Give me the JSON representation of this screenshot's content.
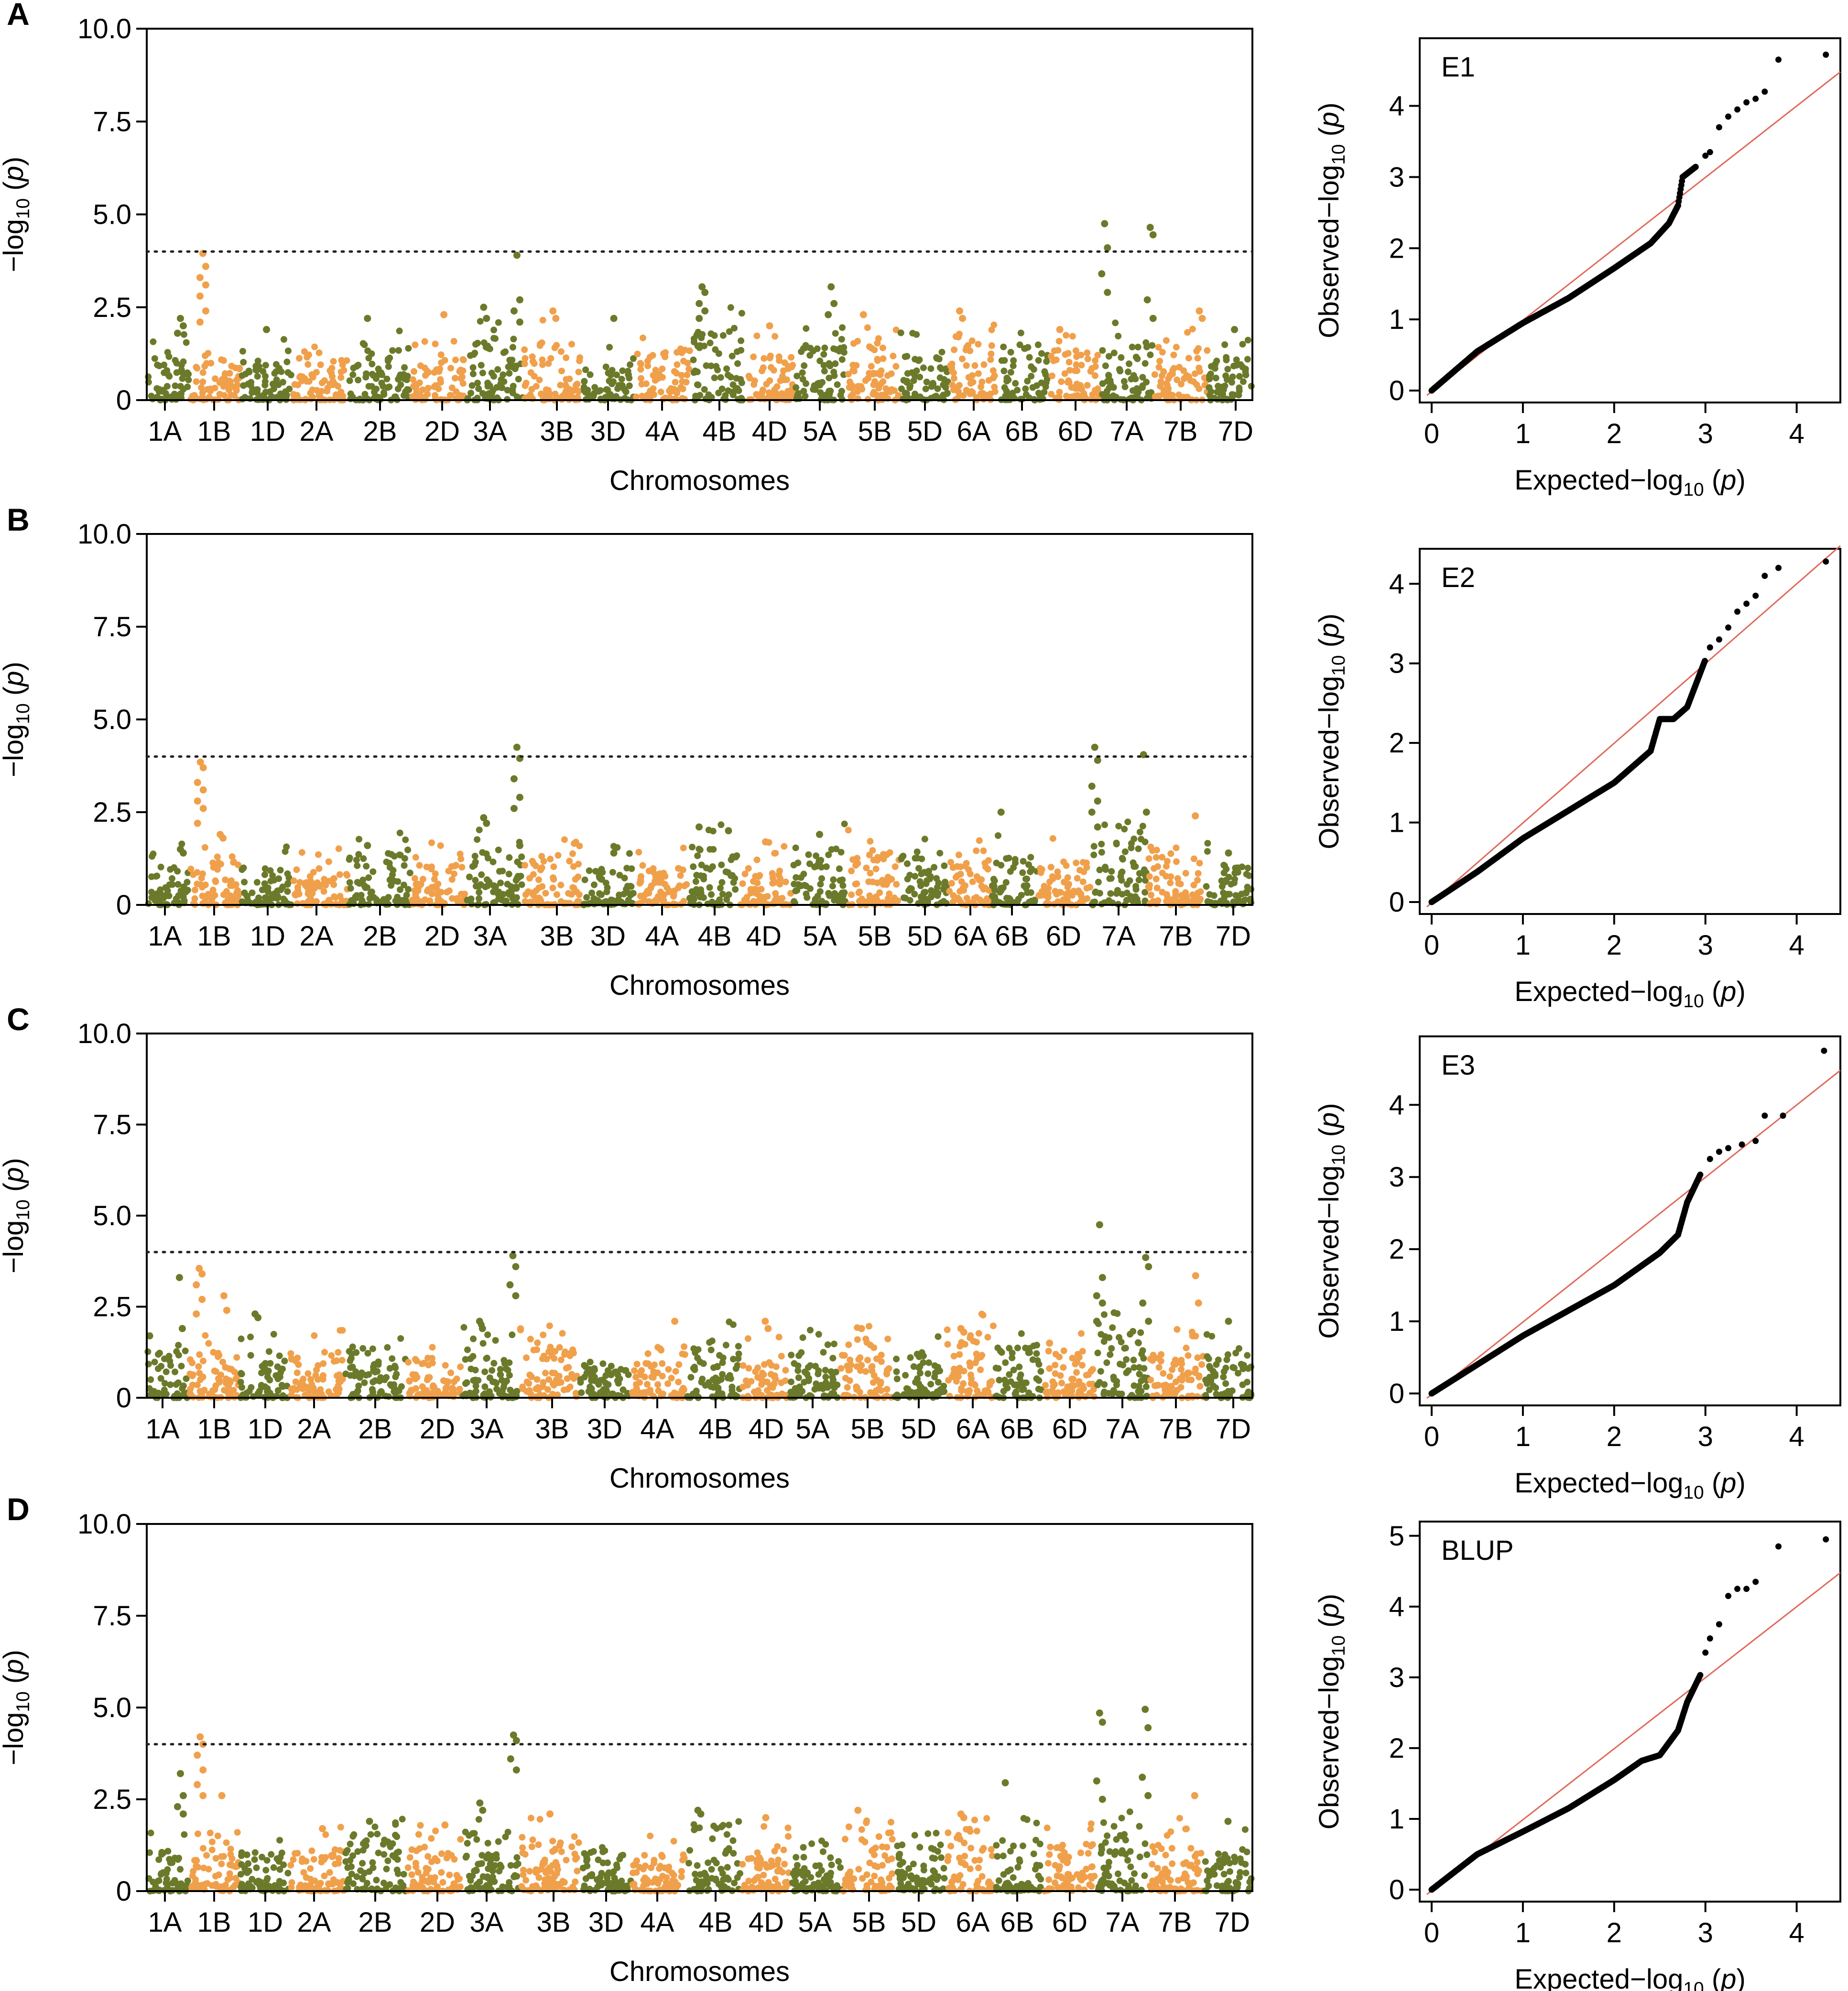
{
  "colors": {
    "olive": "#6b7a2a",
    "orange": "#f0a04b",
    "reference_line": "#e0685a",
    "points": "#000000",
    "threshold": "#222222"
  },
  "chart_data": [
    {
      "panel": "A",
      "type": "scatter",
      "subtype": "manhattan",
      "xlabel": "Chromosomes",
      "ylabel": "−log10 (p)",
      "ylim": [
        0,
        10
      ],
      "yticks": [
        "0",
        "2.5",
        "5.0",
        "7.5",
        "10.0"
      ],
      "threshold": 4,
      "categories": [
        "1A",
        "1B",
        "1D",
        "2A",
        "2B",
        "2D",
        "3A",
        "3B",
        "3D",
        "4A",
        "4B",
        "4D",
        "5A",
        "5B",
        "5D",
        "6A",
        "6B",
        "6D",
        "7A",
        "7B",
        "7D"
      ],
      "baseline_max": [
        1.4,
        1.3,
        1.1,
        1.3,
        1.5,
        1.2,
        1.7,
        1.6,
        0.9,
        1.3,
        1.9,
        1.2,
        1.5,
        1.6,
        1.3,
        1.9,
        1.5,
        1.4,
        1.7,
        1.5,
        1.2
      ],
      "peaks": [
        {
          "chrom": "1A",
          "pos": 0.8,
          "p": [
            2.2,
            2.0,
            1.8
          ]
        },
        {
          "chrom": "1B",
          "pos": 0.25,
          "p": [
            3.95,
            3.6,
            3.3,
            3.1,
            2.8,
            2.4,
            2.1
          ]
        },
        {
          "chrom": "1D",
          "pos": 0.5,
          "p": [
            1.9
          ]
        },
        {
          "chrom": "2B",
          "pos": 0.3,
          "p": [
            2.2
          ]
        },
        {
          "chrom": "2D",
          "pos": 0.6,
          "p": [
            2.3
          ]
        },
        {
          "chrom": "3A",
          "pos": 0.3,
          "p": [
            2.5,
            2.2
          ]
        },
        {
          "chrom": "3A",
          "pos": 0.9,
          "p": [
            3.9,
            2.7,
            2.4,
            2.1
          ]
        },
        {
          "chrom": "3B",
          "pos": 0.5,
          "p": [
            2.4,
            2.2
          ]
        },
        {
          "chrom": "3D",
          "pos": 0.6,
          "p": [
            2.2
          ]
        },
        {
          "chrom": "4B",
          "pos": 0.2,
          "p": [
            3.05,
            2.9,
            2.6,
            2.4,
            2.2
          ]
        },
        {
          "chrom": "4D",
          "pos": 0.5,
          "p": [
            2.0
          ]
        },
        {
          "chrom": "5A",
          "pos": 0.7,
          "p": [
            3.05,
            2.6,
            2.3
          ]
        },
        {
          "chrom": "5B",
          "pos": 0.3,
          "p": [
            2.3
          ]
        },
        {
          "chrom": "6A",
          "pos": 0.2,
          "p": [
            2.4,
            2.2
          ]
        },
        {
          "chrom": "6D",
          "pos": 0.2,
          "p": [
            1.9
          ]
        },
        {
          "chrom": "7A",
          "pos": 0.05,
          "p": [
            4.75,
            4.1,
            3.4,
            2.9
          ]
        },
        {
          "chrom": "7A",
          "pos": 0.95,
          "p": [
            4.65,
            4.45,
            2.7,
            2.2
          ]
        },
        {
          "chrom": "7B",
          "pos": 0.85,
          "p": [
            2.4,
            2.2
          ]
        },
        {
          "chrom": "7D",
          "pos": 0.6,
          "p": [
            1.9
          ]
        }
      ]
    },
    {
      "panel": "B",
      "type": "scatter",
      "subtype": "manhattan",
      "xlabel": "Chromosomes",
      "ylabel": "−log10 (p)",
      "ylim": [
        0,
        10
      ],
      "yticks": [
        "0",
        "2.5",
        "5.0",
        "7.5",
        "10.0"
      ],
      "threshold": 4,
      "categories": [
        "1A",
        "1B",
        "1D",
        "2A",
        "2B",
        "2D",
        "3A",
        "3B",
        "3D",
        "4A",
        "4B",
        "4D",
        "5A",
        "5B",
        "5D",
        "6A",
        "6B",
        "6D",
        "7A",
        "7B",
        "7D"
      ],
      "baseline_max": [
        1.1,
        1.3,
        1.0,
        1.0,
        1.4,
        1.1,
        1.5,
        1.2,
        1.0,
        1.0,
        1.8,
        1.1,
        1.6,
        1.5,
        1.4,
        1.5,
        1.3,
        1.2,
        1.7,
        1.3,
        1.1
      ],
      "peaks": [
        {
          "chrom": "1A",
          "pos": 0.8,
          "p": [
            1.5,
            1.4
          ]
        },
        {
          "chrom": "1B",
          "pos": 0.2,
          "p": [
            3.85,
            3.7,
            3.3,
            3.1,
            2.8,
            2.6,
            2.2
          ]
        },
        {
          "chrom": "1B",
          "pos": 0.6,
          "p": [
            1.9,
            1.8
          ]
        },
        {
          "chrom": "2B",
          "pos": 0.3,
          "p": [
            1.6
          ]
        },
        {
          "chrom": "3A",
          "pos": 0.3,
          "p": [
            2.35,
            2.2
          ]
        },
        {
          "chrom": "3A",
          "pos": 0.9,
          "p": [
            4.25,
            3.95,
            3.4,
            2.9,
            2.6,
            1.6
          ]
        },
        {
          "chrom": "3D",
          "pos": 0.6,
          "p": [
            1.4
          ]
        },
        {
          "chrom": "4B",
          "pos": 0.2,
          "p": [
            2.1
          ]
        },
        {
          "chrom": "4B",
          "pos": 0.8,
          "p": [
            2.0
          ]
        },
        {
          "chrom": "4D",
          "pos": 0.5,
          "p": [
            1.7
          ]
        },
        {
          "chrom": "5A",
          "pos": 0.5,
          "p": [
            1.9
          ]
        },
        {
          "chrom": "6B",
          "pos": 0.2,
          "p": [
            2.5
          ]
        },
        {
          "chrom": "7A",
          "pos": 0.05,
          "p": [
            4.25,
            3.9,
            3.2,
            2.8,
            2.5,
            2.1
          ]
        },
        {
          "chrom": "7A",
          "pos": 0.95,
          "p": [
            4.05,
            2.5
          ]
        },
        {
          "chrom": "7B",
          "pos": 0.85,
          "p": [
            2.4
          ]
        },
        {
          "chrom": "7D",
          "pos": 0.5,
          "p": [
            1.4
          ]
        }
      ]
    },
    {
      "panel": "C",
      "type": "scatter",
      "subtype": "manhattan",
      "xlabel": "Chromosomes",
      "ylabel": "−log10 (p)",
      "ylim": [
        0,
        10
      ],
      "yticks": [
        "0",
        "2.5",
        "5.0",
        "7.5",
        "10.0"
      ],
      "threshold": 4,
      "categories": [
        "1A",
        "1B",
        "1D",
        "2A",
        "2B",
        "2D",
        "3A",
        "3B",
        "3D",
        "4A",
        "4B",
        "4D",
        "5A",
        "5B",
        "5D",
        "6A",
        "6B",
        "6D",
        "7A",
        "7B",
        "7D"
      ],
      "baseline_max": [
        1.3,
        1.3,
        1.2,
        1.3,
        1.4,
        1.1,
        1.6,
        1.4,
        1.0,
        1.0,
        1.6,
        1.3,
        1.3,
        1.5,
        1.3,
        1.9,
        1.4,
        1.3,
        1.8,
        1.4,
        1.2
      ],
      "peaks": [
        {
          "chrom": "1A",
          "pos": 0.05,
          "p": [
            1.7
          ]
        },
        {
          "chrom": "1A",
          "pos": 0.8,
          "p": [
            3.3,
            1.9
          ]
        },
        {
          "chrom": "1B",
          "pos": 0.2,
          "p": [
            3.55,
            3.4,
            3.1,
            2.7,
            2.3
          ]
        },
        {
          "chrom": "1B",
          "pos": 0.7,
          "p": [
            2.8,
            2.4
          ]
        },
        {
          "chrom": "1D",
          "pos": 0.3,
          "p": [
            2.3,
            2.2
          ]
        },
        {
          "chrom": "3A",
          "pos": 0.3,
          "p": [
            2.1,
            1.9
          ]
        },
        {
          "chrom": "3A",
          "pos": 0.9,
          "p": [
            3.9,
            3.6,
            3.1,
            2.8
          ]
        },
        {
          "chrom": "4A",
          "pos": 0.8,
          "p": [
            2.1
          ]
        },
        {
          "chrom": "4D",
          "pos": 0.5,
          "p": [
            2.1,
            1.9
          ]
        },
        {
          "chrom": "5B",
          "pos": 0.4,
          "p": [
            1.9
          ]
        },
        {
          "chrom": "6A",
          "pos": 0.3,
          "p": [
            1.9,
            1.8
          ]
        },
        {
          "chrom": "6D",
          "pos": 0.1,
          "p": [
            1.5
          ]
        },
        {
          "chrom": "7A",
          "pos": 0.05,
          "p": [
            4.75,
            3.3,
            2.8,
            2.6,
            2.1
          ]
        },
        {
          "chrom": "7A",
          "pos": 0.95,
          "p": [
            3.85,
            3.6,
            2.6,
            2.1
          ]
        },
        {
          "chrom": "7B",
          "pos": 0.85,
          "p": [
            3.35,
            2.6,
            1.7
          ]
        },
        {
          "chrom": "7D",
          "pos": 0.5,
          "p": [
            2.1
          ]
        }
      ]
    },
    {
      "panel": "D",
      "type": "scatter",
      "subtype": "manhattan",
      "xlabel": "Chromosomes",
      "ylabel": "−log10 (p)",
      "ylim": [
        0,
        10
      ],
      "yticks": [
        "0",
        "2.5",
        "5.0",
        "7.5",
        "10.0"
      ],
      "threshold": 4,
      "categories": [
        "1A",
        "1B",
        "1D",
        "2A",
        "2B",
        "2D",
        "3A",
        "3B",
        "3D",
        "4A",
        "4B",
        "4D",
        "5A",
        "5B",
        "5D",
        "6A",
        "6B",
        "6D",
        "7A",
        "7B",
        "7D"
      ],
      "baseline_max": [
        1.2,
        1.3,
        1.1,
        1.2,
        1.6,
        1.2,
        1.7,
        1.5,
        1.1,
        1.0,
        1.9,
        1.2,
        1.3,
        1.5,
        1.4,
        1.8,
        1.4,
        1.3,
        1.8,
        1.4,
        1.2
      ],
      "peaks": [
        {
          "chrom": "1A",
          "pos": 0.8,
          "p": [
            3.2,
            2.6,
            2.3,
            2.1
          ]
        },
        {
          "chrom": "1B",
          "pos": 0.2,
          "p": [
            4.2,
            4.0,
            3.7,
            3.3,
            2.9,
            2.6
          ]
        },
        {
          "chrom": "1B",
          "pos": 0.65,
          "p": [
            2.6
          ]
        },
        {
          "chrom": "2A",
          "pos": 0.6,
          "p": [
            1.7
          ]
        },
        {
          "chrom": "2B",
          "pos": 0.4,
          "p": [
            1.9
          ]
        },
        {
          "chrom": "2D",
          "pos": 0.7,
          "p": [
            1.8
          ]
        },
        {
          "chrom": "3A",
          "pos": 0.3,
          "p": [
            2.4,
            2.2
          ]
        },
        {
          "chrom": "3A",
          "pos": 0.9,
          "p": [
            4.25,
            4.1,
            3.6,
            3.3
          ]
        },
        {
          "chrom": "3B",
          "pos": 0.5,
          "p": [
            2.1
          ]
        },
        {
          "chrom": "4B",
          "pos": 0.2,
          "p": [
            2.2,
            2.1
          ]
        },
        {
          "chrom": "4D",
          "pos": 0.5,
          "p": [
            2.0
          ]
        },
        {
          "chrom": "5B",
          "pos": 0.3,
          "p": [
            2.2
          ]
        },
        {
          "chrom": "6A",
          "pos": 0.3,
          "p": [
            2.1,
            2.0
          ]
        },
        {
          "chrom": "6B",
          "pos": 0.2,
          "p": [
            2.95
          ]
        },
        {
          "chrom": "7A",
          "pos": 0.05,
          "p": [
            4.85,
            4.6,
            3.0,
            2.5
          ]
        },
        {
          "chrom": "7A",
          "pos": 0.95,
          "p": [
            4.95,
            4.45,
            3.1,
            2.6
          ]
        },
        {
          "chrom": "7B",
          "pos": 0.85,
          "p": [
            2.6
          ]
        },
        {
          "chrom": "7D",
          "pos": 0.5,
          "p": [
            1.9
          ]
        }
      ]
    },
    {
      "panel": "E1",
      "type": "scatter",
      "subtype": "qq",
      "title": "E1",
      "xlabel": "Expected−log10 (p)",
      "ylabel": "Observed−log10 (p)",
      "xlim": [
        0,
        4.4
      ],
      "ylim": [
        0,
        4.85
      ],
      "xticks": [
        0,
        1,
        2,
        3,
        4
      ],
      "yticks": [
        0,
        1,
        2,
        3,
        4
      ],
      "curve": [
        [
          0,
          0
        ],
        [
          0.5,
          0.55
        ],
        [
          1.0,
          0.95
        ],
        [
          1.5,
          1.3
        ],
        [
          2.0,
          1.72
        ],
        [
          2.4,
          2.07
        ],
        [
          2.6,
          2.35
        ],
        [
          2.7,
          2.6
        ],
        [
          2.75,
          3.0
        ],
        [
          2.9,
          3.15
        ]
      ],
      "tail": [
        [
          3.0,
          3.3
        ],
        [
          3.05,
          3.35
        ],
        [
          3.15,
          3.7
        ],
        [
          3.25,
          3.85
        ],
        [
          3.35,
          3.95
        ],
        [
          3.45,
          4.05
        ],
        [
          3.55,
          4.1
        ],
        [
          3.65,
          4.2
        ],
        [
          3.8,
          4.65
        ],
        [
          4.32,
          4.72
        ]
      ]
    },
    {
      "panel": "E2",
      "type": "scatter",
      "subtype": "qq",
      "title": "E2",
      "xlabel": "Expected−log10 (p)",
      "ylabel": "Observed−log10 (p)",
      "xlim": [
        0,
        4.4
      ],
      "ylim": [
        0,
        4.35
      ],
      "xticks": [
        0,
        1,
        2,
        3,
        4
      ],
      "yticks": [
        0,
        1,
        2,
        3,
        4
      ],
      "curve": [
        [
          0,
          0
        ],
        [
          0.5,
          0.38
        ],
        [
          1.0,
          0.8
        ],
        [
          1.5,
          1.15
        ],
        [
          2.0,
          1.5
        ],
        [
          2.4,
          1.9
        ],
        [
          2.5,
          2.3
        ],
        [
          2.65,
          2.3
        ],
        [
          2.8,
          2.45
        ],
        [
          2.9,
          2.75
        ],
        [
          3.0,
          3.05
        ]
      ],
      "tail": [
        [
          3.05,
          3.2
        ],
        [
          3.15,
          3.3
        ],
        [
          3.25,
          3.45
        ],
        [
          3.35,
          3.65
        ],
        [
          3.45,
          3.75
        ],
        [
          3.55,
          3.85
        ],
        [
          3.65,
          4.1
        ],
        [
          3.8,
          4.2
        ],
        [
          4.32,
          4.28
        ]
      ]
    },
    {
      "panel": "E3",
      "type": "scatter",
      "subtype": "qq",
      "title": "E3",
      "xlabel": "Expected−log10 (p)",
      "ylabel": "Observed−log10 (p)",
      "xlim": [
        0,
        4.4
      ],
      "ylim": [
        0,
        4.85
      ],
      "xticks": [
        0,
        1,
        2,
        3,
        4
      ],
      "yticks": [
        0,
        1,
        2,
        3,
        4
      ],
      "curve": [
        [
          0,
          0
        ],
        [
          0.5,
          0.4
        ],
        [
          1.0,
          0.8
        ],
        [
          1.5,
          1.15
        ],
        [
          2.0,
          1.5
        ],
        [
          2.5,
          1.95
        ],
        [
          2.7,
          2.2
        ],
        [
          2.8,
          2.65
        ],
        [
          2.95,
          3.05
        ]
      ],
      "tail": [
        [
          3.05,
          3.25
        ],
        [
          3.15,
          3.35
        ],
        [
          3.25,
          3.4
        ],
        [
          3.4,
          3.45
        ],
        [
          3.55,
          3.5
        ],
        [
          3.65,
          3.85
        ],
        [
          3.85,
          3.85
        ],
        [
          4.3,
          4.75
        ]
      ]
    },
    {
      "panel": "BLUP",
      "type": "scatter",
      "subtype": "qq",
      "title": "BLUP",
      "xlabel": "Expected−log10 (p)",
      "ylabel": "Observed−log10 (p)",
      "xlim": [
        0,
        4.4
      ],
      "ylim": [
        0,
        5.1
      ],
      "xticks": [
        0,
        1,
        2,
        3,
        4
      ],
      "yticks": [
        0,
        1,
        2,
        3,
        4,
        5
      ],
      "curve": [
        [
          0,
          0
        ],
        [
          0.5,
          0.5
        ],
        [
          1.0,
          0.82
        ],
        [
          1.5,
          1.15
        ],
        [
          2.0,
          1.55
        ],
        [
          2.3,
          1.82
        ],
        [
          2.5,
          1.9
        ],
        [
          2.7,
          2.25
        ],
        [
          2.8,
          2.65
        ],
        [
          2.95,
          3.05
        ]
      ],
      "tail": [
        [
          3.0,
          3.35
        ],
        [
          3.05,
          3.55
        ],
        [
          3.15,
          3.75
        ],
        [
          3.25,
          4.15
        ],
        [
          3.35,
          4.25
        ],
        [
          3.45,
          4.25
        ],
        [
          3.55,
          4.35
        ],
        [
          3.8,
          4.85
        ],
        [
          4.32,
          4.95
        ]
      ]
    }
  ],
  "panel_labels": [
    "A",
    "B",
    "C",
    "D"
  ]
}
